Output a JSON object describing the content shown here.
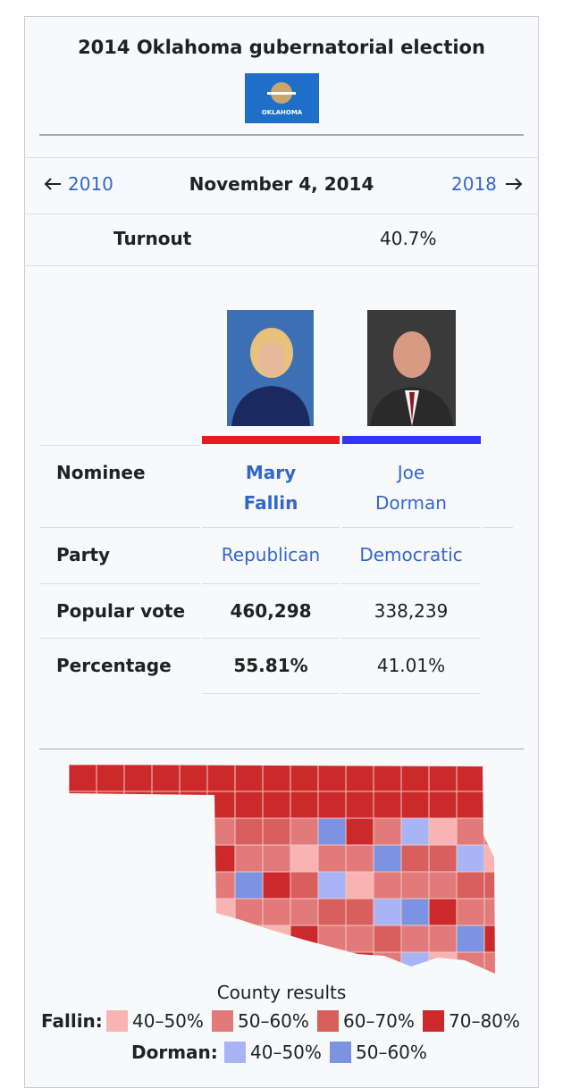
{
  "infobox": {
    "title": "2014 Oklahoma gubernatorial election",
    "flag_label": "OKLAHOMA",
    "nav": {
      "previous": "2010",
      "date": "November 4, 2014",
      "next": "2018"
    },
    "turnout": {
      "label": "Turnout",
      "value": "40.7%"
    },
    "table": {
      "rows": [
        [
          "Nominee",
          "Mary Fallin",
          "Joe Dorman"
        ],
        [
          "Party",
          "Republican",
          "Democratic"
        ],
        [
          "Popular vote",
          "460,298",
          "338,239"
        ],
        [
          "Percentage",
          "55.81%",
          "41.01%"
        ]
      ]
    },
    "map": {
      "caption": "County results",
      "legend": [
        {
          "label": "Fallin:",
          "items": [
            "40–50%",
            "50–60%",
            "60–70%",
            "70–80%"
          ]
        },
        {
          "label": "Dorman:",
          "items": [
            "40–50%",
            "50–60%"
          ]
        }
      ]
    }
  }
}
